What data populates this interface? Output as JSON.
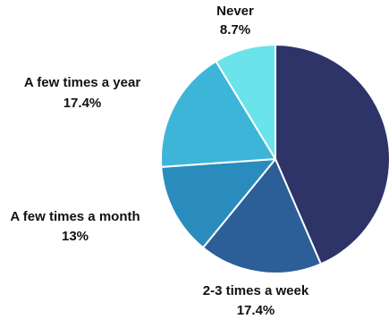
{
  "chart_data": {
    "type": "pie",
    "title": "",
    "start_angle_deg": 0,
    "direction": "clockwise",
    "slices": [
      {
        "label": "",
        "value_text": "",
        "value": 43.5,
        "color": "#2e3467"
      },
      {
        "label": "2-3 times a week",
        "value_text": "17.4%",
        "value": 17.4,
        "color": "#2c5f98"
      },
      {
        "label": "A few times a month",
        "value_text": "13%",
        "value": 13.0,
        "color": "#2a8cbc"
      },
      {
        "label": "A few times a year",
        "value_text": "17.4%",
        "value": 17.4,
        "color": "#3db5d8"
      },
      {
        "label": "Never",
        "value_text": "8.7%",
        "value": 8.7,
        "color": "#6ae3ea"
      }
    ]
  }
}
